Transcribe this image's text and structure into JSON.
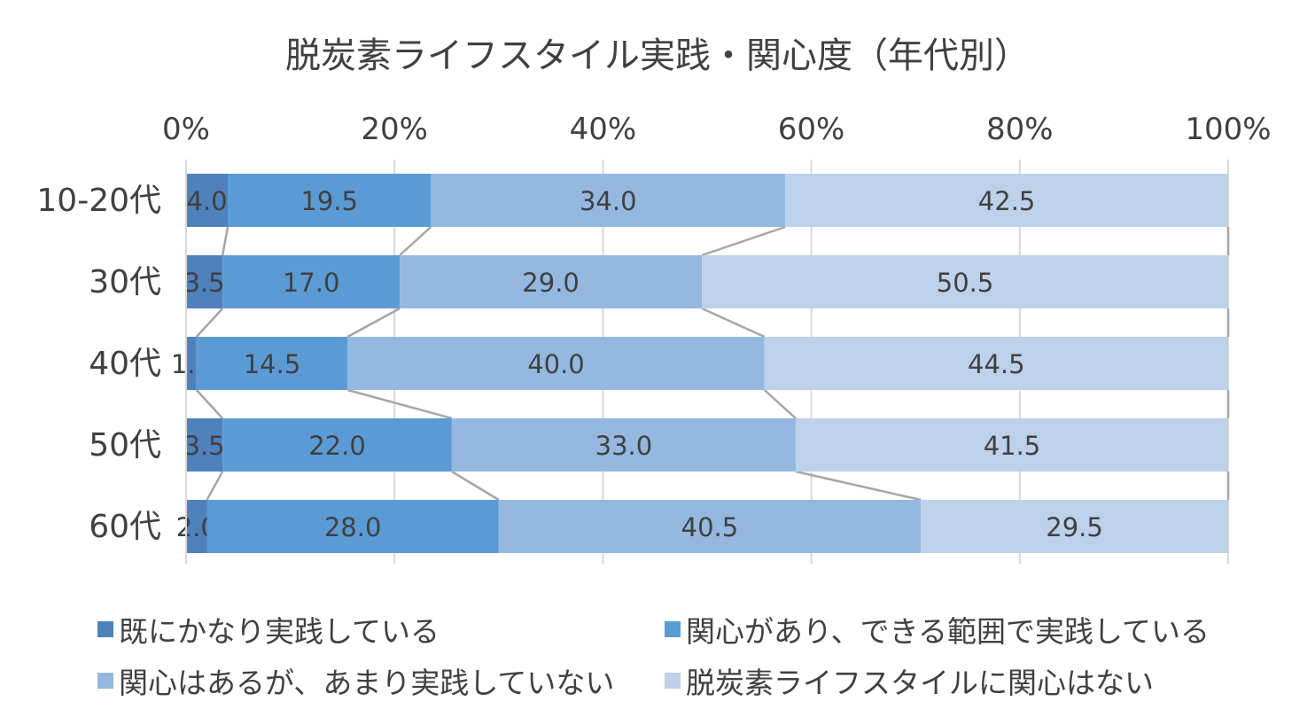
{
  "chart_data": {
    "type": "bar",
    "orientation": "horizontal",
    "stacked": "percent",
    "title": "脱炭素ライフスタイル実践・関心度（年代別）",
    "categories": [
      "10-20代",
      "30代",
      "40代",
      "50代",
      "60代"
    ],
    "xlim": [
      0,
      100
    ],
    "xticks": [
      "0%",
      "20%",
      "40%",
      "60%",
      "80%",
      "100%"
    ],
    "grid": true,
    "legend_position": "bottom",
    "series": [
      {
        "name": "既にかなり実践している",
        "color": "#4f81bd",
        "values": [
          4.0,
          3.5,
          1.0,
          3.5,
          2.0
        ]
      },
      {
        "name": "関心があり、できる範囲で実践している",
        "color": "#5b9bd5",
        "values": [
          19.5,
          17.0,
          14.5,
          22.0,
          28.0
        ]
      },
      {
        "name": "関心はあるが、あまり実践していない",
        "color": "#95b8e0",
        "values": [
          34.0,
          29.0,
          40.0,
          33.0,
          40.5
        ]
      },
      {
        "name": "脱炭素ライフスタイルに関心はない",
        "color": "#bdd1ea",
        "values": [
          42.5,
          50.5,
          44.5,
          41.5,
          29.5
        ]
      }
    ]
  }
}
